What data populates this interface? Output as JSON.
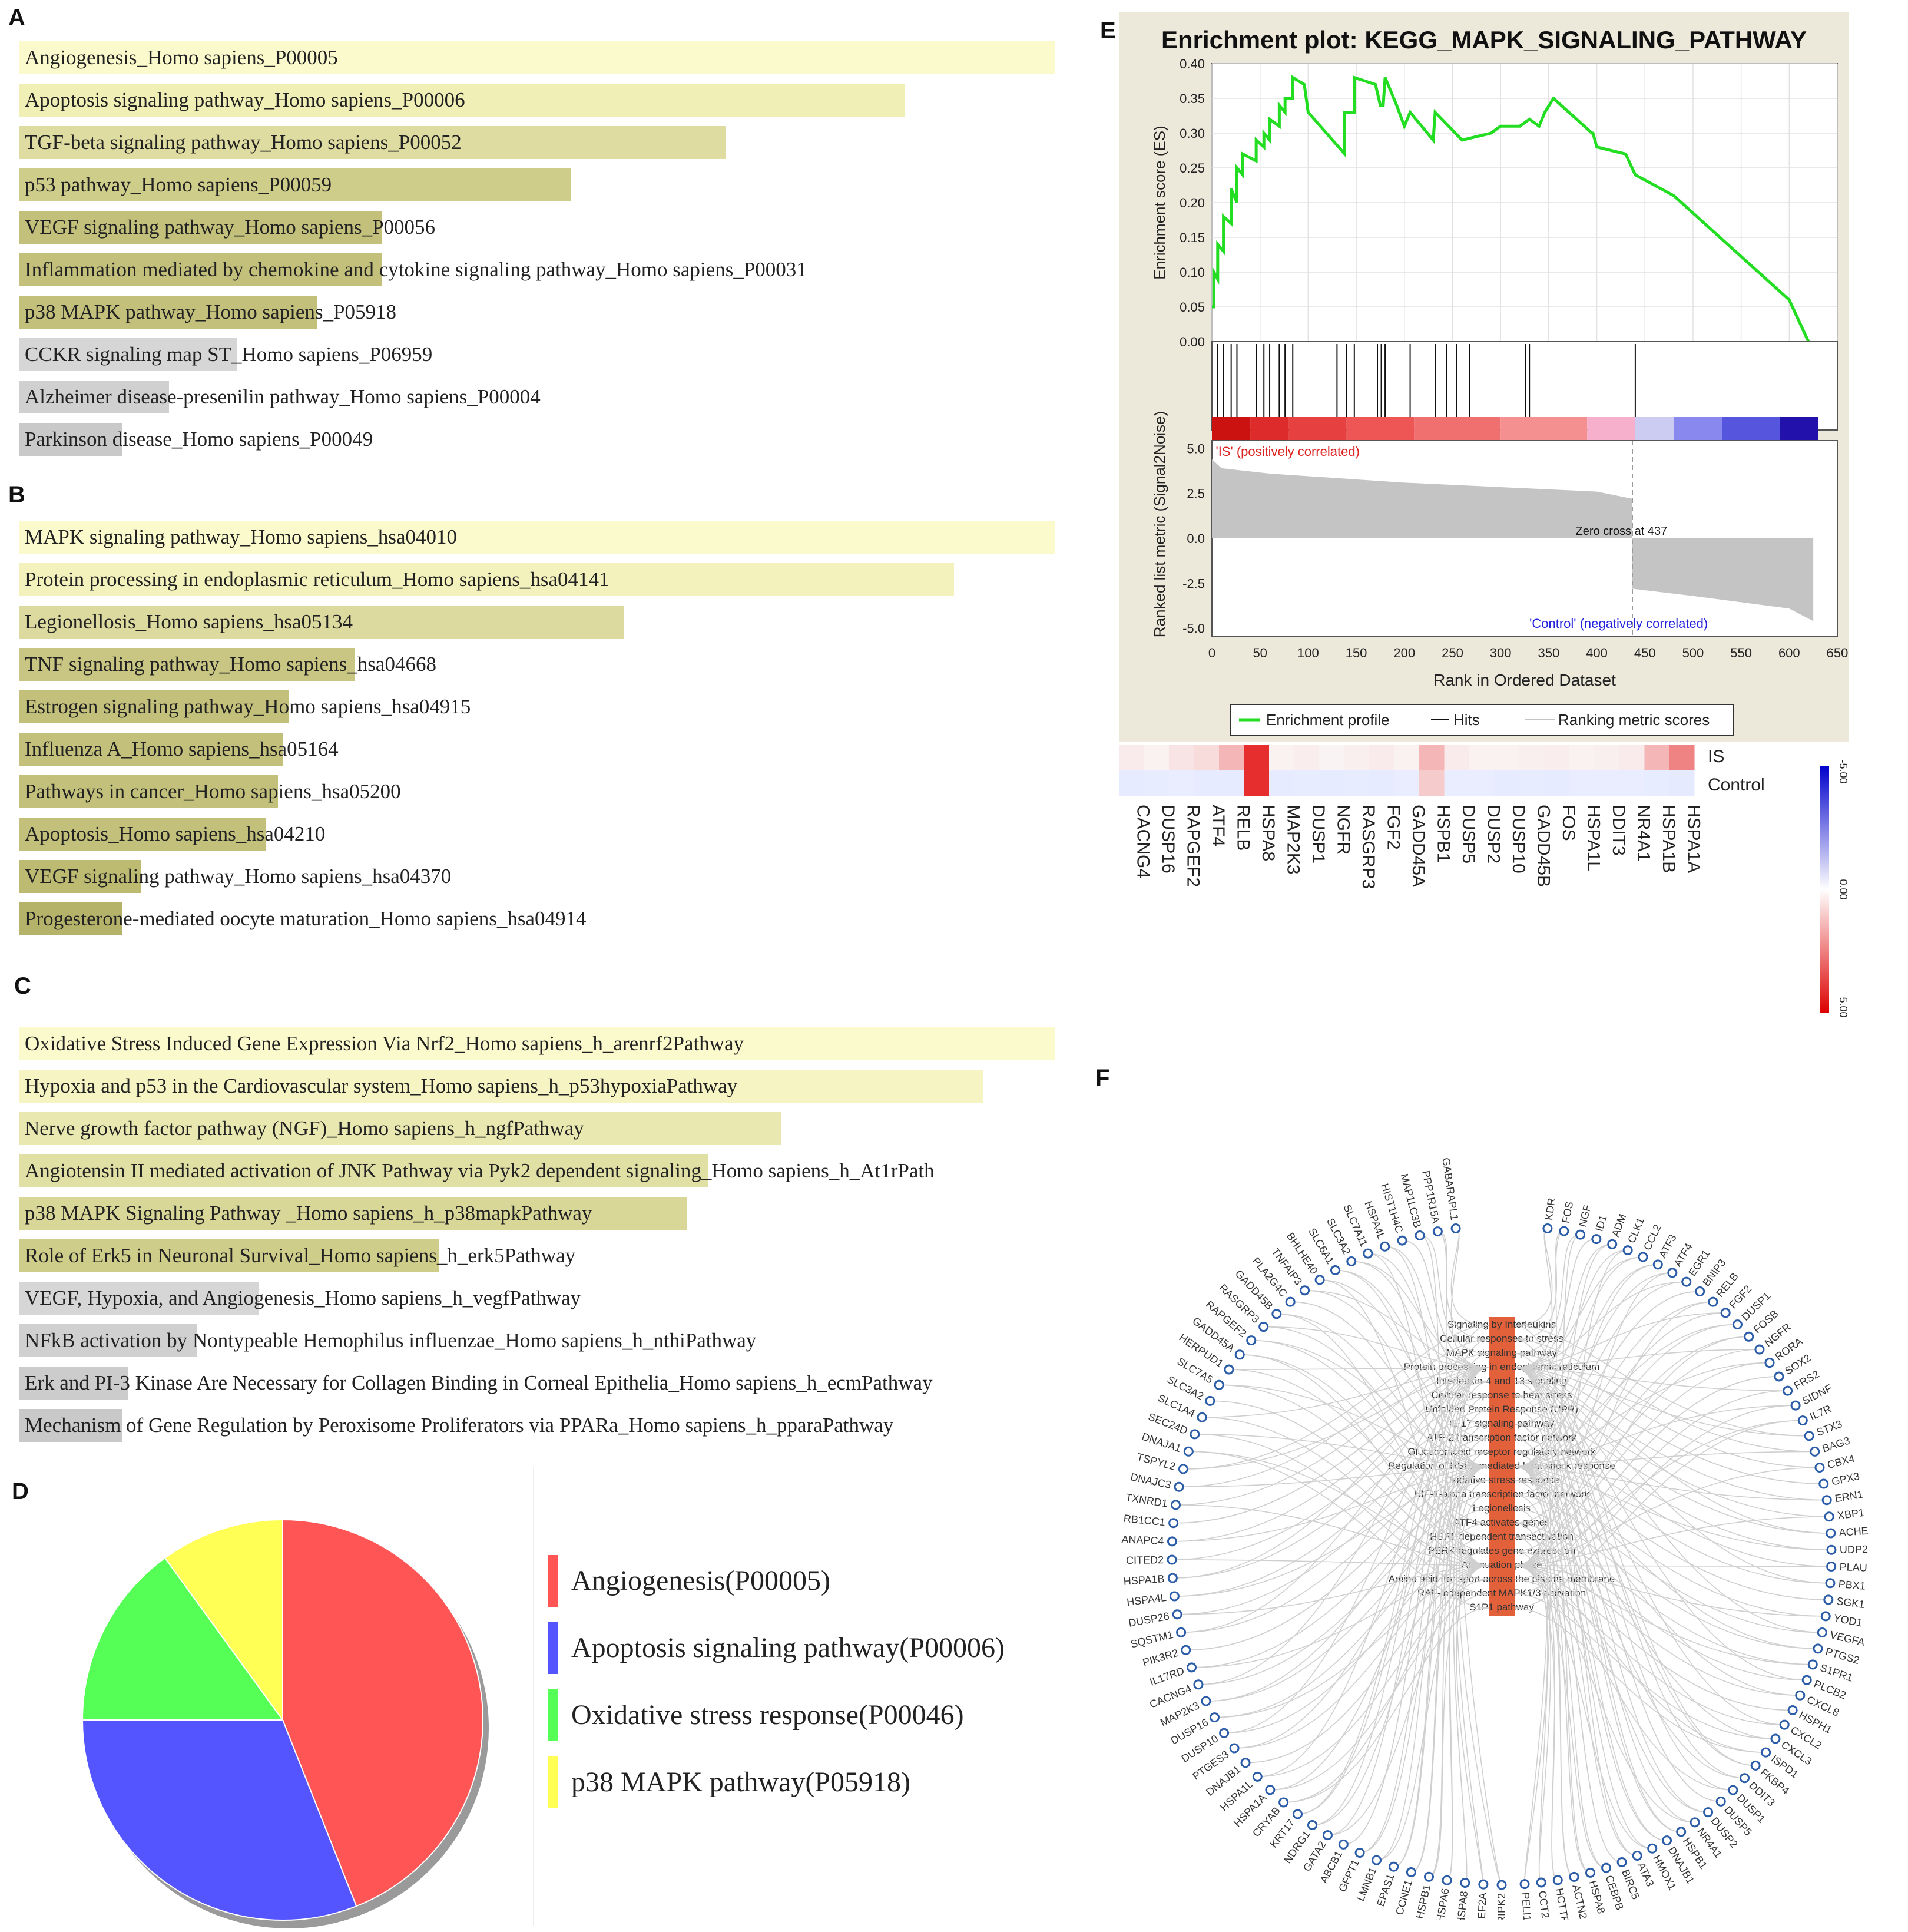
{
  "panels": {
    "A": "A",
    "B": "B",
    "C": "C",
    "D": "D",
    "E": "E",
    "F": "F"
  },
  "colors": {
    "tier1": "#fbfacc",
    "tier2": "#eceba6",
    "tier3": "#d9d793",
    "tier4": "#c4c27a",
    "tier5": "#ababab",
    "tier6": "#cdcdcd",
    "grey_bar": "#d2d2d2",
    "es_line": "#22dd22",
    "red": "#ff5555",
    "blue": "#5555ff",
    "green": "#55ff55",
    "yellow": "#ffff55"
  },
  "panelA": [
    {
      "label": "Angiogenesis_Homo sapiens_P00005",
      "value": 1.0,
      "color": "#fbfacc"
    },
    {
      "label": "Apoptosis signaling pathway_Homo sapiens_P00006",
      "value": 0.855,
      "color": "#f0efb6"
    },
    {
      "label": "TGF-beta signaling pathway_Homo sapiens_P00052",
      "value": 0.682,
      "color": "#dedca0"
    },
    {
      "label": "p53 pathway_Homo sapiens_P00059",
      "value": 0.533,
      "color": "#cfcd8a"
    },
    {
      "label": "VEGF signaling pathway_Homo sapiens_P00056",
      "value": 0.35,
      "color": "#c2c07a"
    },
    {
      "label": "Inflammation mediated by chemokine and cytokine signaling pathway_Homo sapiens_P00031",
      "value": 0.35,
      "color": "#c2c07a"
    },
    {
      "label": "p38 MAPK pathway_Homo sapiens_P05918",
      "value": 0.288,
      "color": "#c2c07a"
    },
    {
      "label": "CCKR signaling map ST_Homo sapiens_P06959",
      "value": 0.21,
      "color": "#d6d6d6"
    },
    {
      "label": "Alzheimer disease-presenilin pathway_Homo sapiens_P00004",
      "value": 0.145,
      "color": "#d0d0d0"
    },
    {
      "label": "Parkinson disease_Homo sapiens_P00049",
      "value": 0.1,
      "color": "#c9c9c9"
    }
  ],
  "panelB": [
    {
      "label": "MAPK signaling pathway_Homo sapiens_hsa04010",
      "value": 1.0,
      "color": "#fbfacc"
    },
    {
      "label": "Protein processing in endoplasmic reticulum_Homo sapiens_hsa04141",
      "value": 0.902,
      "color": "#f3f2bc"
    },
    {
      "label": "Legionellosis_Homo sapiens_hsa05134",
      "value": 0.584,
      "color": "#dcda9e"
    },
    {
      "label": "TNF signaling pathway_Homo sapiens_hsa04668",
      "value": 0.324,
      "color": "#c8c682"
    },
    {
      "label": "Estrogen signaling pathway_Homo sapiens_hsa04915",
      "value": 0.26,
      "color": "#c2c07a"
    },
    {
      "label": "Influenza A_Homo sapiens_hsa05164",
      "value": 0.255,
      "color": "#c2c07a"
    },
    {
      "label": "Pathways in cancer_Homo sapiens_hsa05200",
      "value": 0.25,
      "color": "#c2c07a"
    },
    {
      "label": "Apoptosis_Homo sapiens_hsa04210",
      "value": 0.238,
      "color": "#c2c07a"
    },
    {
      "label": "VEGF signaling pathway_Homo sapiens_hsa04370",
      "value": 0.118,
      "color": "#bdbb72"
    },
    {
      "label": "Progesterone-mediated oocyte maturation_Homo sapiens_hsa04914",
      "value": 0.1,
      "color": "#b5b36a"
    }
  ],
  "panelC": [
    {
      "label": "Oxidative Stress Induced Gene Expression Via Nrf2_Homo sapiens_h_arenrf2Pathway",
      "value": 1.0,
      "color": "#fbfacc"
    },
    {
      "label": "Hypoxia and p53 in the Cardiovascular system_Homo sapiens_h_p53hypoxiaPathway",
      "value": 0.93,
      "color": "#f5f4c2"
    },
    {
      "label": "Nerve growth factor pathway (NGF)_Homo sapiens_h_ngfPathway",
      "value": 0.735,
      "color": "#e9e8b0"
    },
    {
      "label": "Angiotensin II mediated activation of JNK Pathway via Pyk2 dependent signaling_Homo sapiens_h_At1rPath",
      "value": 0.665,
      "color": "#e0dfa4"
    },
    {
      "label": "p38 MAPK Signaling Pathway _Homo sapiens_h_p38mapkPathway",
      "value": 0.645,
      "color": "#d9d798"
    },
    {
      "label": "Role of Erk5 in Neuronal Survival_Homo sapiens_h_erk5Pathway",
      "value": 0.405,
      "color": "#cfcd8a"
    },
    {
      "label": "VEGF, Hypoxia, and Angiogenesis_Homo sapiens_h_vegfPathway",
      "value": 0.232,
      "color": "#d6d6d6"
    },
    {
      "label": "NFkB activation by Nontypeable Hemophilus influenzae_Homo sapiens_h_nthiPathway",
      "value": 0.172,
      "color": "#d0d0d0"
    },
    {
      "label": "Erk and PI-3 Kinase Are Necessary for Collagen Binding in Corneal Epithelia_Homo sapiens_h_ecmPathway",
      "value": 0.105,
      "color": "#cccccc"
    },
    {
      "label": "Mechanism of Gene Regulation by Peroxisome Proliferators via PPARa_Homo sapiens_h_pparaPathway",
      "value": 0.1,
      "color": "#c9c9c9"
    }
  ],
  "chart_data": [
    {
      "type": "bar",
      "panel": "A",
      "categories": [
        "Angiogenesis_Homo sapiens_P00005",
        "Apoptosis signaling pathway_Homo sapiens_P00006",
        "TGF-beta signaling pathway_Homo sapiens_P00052",
        "p53 pathway_Homo sapiens_P00059",
        "VEGF signaling pathway_Homo sapiens_P00056",
        "Inflammation mediated by chemokine and cytokine signaling pathway_Homo sapiens_P00031",
        "p38 MAPK pathway_Homo sapiens_P05918",
        "CCKR signaling map ST_Homo sapiens_P06959",
        "Alzheimer disease-presenilin pathway_Homo sapiens_P00004",
        "Parkinson disease_Homo sapiens_P00049"
      ],
      "values": [
        1.0,
        0.855,
        0.682,
        0.533,
        0.35,
        0.35,
        0.288,
        0.21,
        0.145,
        0.1
      ]
    },
    {
      "type": "bar",
      "panel": "B",
      "categories": [
        "MAPK signaling pathway_Homo sapiens_hsa04010",
        "Protein processing in endoplasmic reticulum_Homo sapiens_hsa04141",
        "Legionellosis_Homo sapiens_hsa05134",
        "TNF signaling pathway_Homo sapiens_hsa04668",
        "Estrogen signaling pathway_Homo sapiens_hsa04915",
        "Influenza A_Homo sapiens_hsa05164",
        "Pathways in cancer_Homo sapiens_hsa05200",
        "Apoptosis_Homo sapiens_hsa04210",
        "VEGF signaling pathway_Homo sapiens_hsa04370",
        "Progesterone-mediated oocyte maturation_Homo sapiens_hsa04914"
      ],
      "values": [
        1.0,
        0.902,
        0.584,
        0.324,
        0.26,
        0.255,
        0.25,
        0.238,
        0.118,
        0.1
      ]
    },
    {
      "type": "bar",
      "panel": "C",
      "categories": [
        "arenrf2Pathway",
        "p53hypoxiaPathway",
        "ngfPathway",
        "At1rPath",
        "p38mapkPathway",
        "erk5Pathway",
        "vegfPathway",
        "nthiPathway",
        "ecmPathway",
        "pparaPathway"
      ],
      "values": [
        1.0,
        0.93,
        0.735,
        0.665,
        0.645,
        0.405,
        0.232,
        0.172,
        0.105,
        0.1
      ]
    },
    {
      "type": "pie",
      "panel": "D",
      "labels": [
        "Angiogenesis(P00005)",
        "Apoptosis signaling pathway(P00006)",
        "Oxidative stress response(P00046)",
        "p38 MAPK pathway(P05918)"
      ],
      "values": [
        44,
        31,
        15,
        10
      ],
      "colors": [
        "#ff5555",
        "#5555ff",
        "#55ff55",
        "#ffff55"
      ]
    },
    {
      "type": "line",
      "panel": "E",
      "title": "Enrichment plot: KEGG_MAPK_SIGNALING_PATHWAY",
      "ylabel": "Enrichment score (ES)",
      "xlabel": "Rank in Ordered Dataset",
      "ylim": [
        0,
        0.4
      ],
      "xlim": [
        0,
        650
      ],
      "yticks": [
        "0.00",
        "0.05",
        "0.10",
        "0.15",
        "0.20",
        "0.25",
        "0.30",
        "0.35",
        "0.40"
      ],
      "xticks": [
        "0",
        "50",
        "100",
        "150",
        "200",
        "250",
        "300",
        "350",
        "400",
        "450",
        "500",
        "550",
        "600",
        "650"
      ],
      "es_x": [
        0,
        2,
        2,
        6,
        6,
        12,
        12,
        20,
        20,
        26,
        26,
        32,
        32,
        46,
        46,
        54,
        54,
        60,
        60,
        70,
        70,
        76,
        76,
        84,
        84,
        96,
        100,
        138,
        138,
        148,
        148,
        170,
        175,
        178,
        180,
        180,
        192,
        200,
        206,
        230,
        232,
        260,
        290,
        300,
        320,
        330,
        340,
        346,
        355,
        395,
        396,
        400,
        430,
        440,
        480,
        600,
        620
      ],
      "es_y": [
        0.05,
        0.05,
        0.1,
        0.09,
        0.14,
        0.13,
        0.18,
        0.17,
        0.22,
        0.2,
        0.25,
        0.24,
        0.27,
        0.26,
        0.29,
        0.28,
        0.3,
        0.29,
        0.32,
        0.31,
        0.34,
        0.33,
        0.35,
        0.35,
        0.38,
        0.37,
        0.33,
        0.27,
        0.33,
        0.33,
        0.38,
        0.37,
        0.34,
        0.34,
        0.38,
        0.38,
        0.34,
        0.31,
        0.33,
        0.29,
        0.33,
        0.29,
        0.3,
        0.31,
        0.31,
        0.32,
        0.31,
        0.33,
        0.35,
        0.3,
        0.3,
        0.28,
        0.27,
        0.24,
        0.21,
        0.06,
        0.0
      ],
      "hits": [
        6,
        12,
        20,
        26,
        46,
        54,
        60,
        70,
        76,
        84,
        130,
        140,
        148,
        172,
        176,
        180,
        206,
        232,
        244,
        254,
        268,
        326,
        330,
        440
      ],
      "metric_ylabel": "Ranked list metric (Signal2Noise)",
      "metric_yticks": [
        "5.0",
        "2.5",
        "0.0",
        "-2.5",
        "-5.0"
      ],
      "pos_label": "'IS' (positively correlated)",
      "neg_label": "'Control' (negatively correlated)",
      "zero_cross": "Zero cross at 437",
      "legend": [
        "Enrichment profile",
        "Hits",
        "Ranking metric scores"
      ]
    },
    {
      "type": "heatmap",
      "panel": "E",
      "rows": [
        "IS",
        "Control"
      ],
      "columns": [
        "CACNG4",
        "DUSP16",
        "RAPGEF2",
        "ATF4",
        "RELB",
        "HSPA8",
        "MAP2K3",
        "DUSP1",
        "NGFR",
        "RASGRP3",
        "FGF2",
        "GADD45A",
        "HSPB1",
        "DUSP5",
        "DUSP2",
        "DUSP10",
        "GADD45B",
        "FOS",
        "HSPA1L",
        "DDIT3",
        "NR4A1",
        "HSPA1B",
        "HSPA1A"
      ],
      "scale_labels": [
        "-5.00",
        "0.00",
        "5.00"
      ]
    }
  ],
  "panelD": {
    "legend": [
      {
        "label": "Angiogenesis(P00005)",
        "color": "#ff5555"
      },
      {
        "label": "Apoptosis signaling pathway(P00006)",
        "color": "#5555ff"
      },
      {
        "label": "Oxidative stress response(P00046)",
        "color": "#55ff55"
      },
      {
        "label": "p38 MAPK pathway(P05918)",
        "color": "#ffff55"
      }
    ]
  },
  "panelE": {
    "title": "Enrichment plot: KEGG_MAPK_SIGNALING_PATHWAY",
    "ylabel": "Enrichment score (ES)",
    "xlabel": "Rank in Ordered Dataset",
    "metric_ylabel": "Ranked list metric (Signal2Noise)",
    "pos_label": "'IS' (positively correlated)",
    "neg_label": "'Control' (negatively correlated)",
    "zero_cross": "Zero cross at 437",
    "legend": {
      "profile": "Enrichment profile",
      "hits": "Hits",
      "metric": "Ranking metric scores"
    },
    "heat_rows": [
      "IS",
      "Control"
    ],
    "scale_labels": [
      "-5.00",
      "0.00",
      "5.00"
    ],
    "heat_values_is": [
      0.05,
      0.02,
      0.08,
      0.12,
      0.3,
      0.95,
      0.02,
      0.04,
      0.01,
      0.03,
      0.05,
      0.02,
      0.3,
      0.05,
      0.02,
      0.02,
      0.03,
      0.04,
      0.02,
      0.03,
      0.05,
      0.3,
      0.55
    ],
    "heat_values_ctrl": [
      -0.1,
      -0.08,
      -0.05,
      -0.1,
      -0.1,
      0.95,
      -0.1,
      -0.08,
      -0.1,
      -0.08,
      -0.1,
      -0.05,
      0.2,
      -0.05,
      -0.05,
      -0.1,
      -0.08,
      -0.1,
      -0.05,
      -0.05,
      -0.05,
      -0.08,
      -0.12
    ]
  },
  "panelF": {
    "center_terms": [
      "Signaling by Interleukins",
      "Cellular responses to stress",
      "MAPK signaling pathway",
      "Protein processing in endoplasmic reticulum",
      "Interleukin-4 and 13 signaling",
      "Cellular response to heat stress",
      "Unfolded Protein Response (UPR)",
      "IL-17 signaling pathway",
      "ATF-2 transcription factor network",
      "Glucocorticoid receptor regulatory network",
      "Regulation of HSF1-mediated heat shock response",
      "Oxidative stress response",
      "HIF-1-alpha transcription factor network",
      "Legionellosis",
      "ATF4 activates genes",
      "HSF1-dependent transactivation",
      "PERK regulates gene expression",
      "Attenuation phase",
      "Amino acid transport across the plasma membrane",
      "RAF-independent MAPK1/3 activation",
      "S1P1 pathway"
    ],
    "left_genes": [
      "GABARAPL1",
      "PPP1R15A",
      "MAP1LC3B",
      "HIST1H4C",
      "HSPA4L",
      "SLC7A11",
      "SLC3A2",
      "SLC6A1",
      "BHLHE40",
      "TNFAIP3",
      "PLA2G4C",
      "GADD45B",
      "RASGRP3",
      "RAPGEF2",
      "GADD45A",
      "HERPUD1",
      "SLC7A5",
      "SLC3A2",
      "SLC1A4",
      "SEC24D",
      "DNAJA1",
      "TSPYL2",
      "DNAJC3",
      "TXNRD1",
      "RB1CC1",
      "ANAPC4",
      "CITED2",
      "HSPA1B",
      "HSPA4L",
      "DUSP26",
      "SQSTM1",
      "PIK3R2",
      "IL17RD",
      "CACNG4",
      "MAP2K3",
      "DUSP16",
      "DUSP10",
      "PTGES3",
      "DNAJB1",
      "HSPA1L",
      "HSPA1A",
      "CRYAB",
      "KRT17",
      "NDRG1",
      "GATA2",
      "ABCB1",
      "GFPT1",
      "LMNB1",
      "EPAS1",
      "CCNE1",
      "HSPB1",
      "HSPA6",
      "HSPA8",
      "MEF2A",
      "RIPK2"
    ],
    "right_genes": [
      "KDR",
      "FOS",
      "NGF",
      "ID1",
      "ADM",
      "CLK1",
      "CCL2",
      "ATF3",
      "ATF4",
      "EGR1",
      "BNIP3",
      "RELB",
      "FGF2",
      "DUSP1",
      "FOSB",
      "NGFR",
      "RORA",
      "SOX2",
      "FRS2",
      "SIDNF",
      "IL7R",
      "STX3",
      "BAG3",
      "CBX4",
      "GPX3",
      "ERN1",
      "XBP1",
      "ACHE",
      "UDP2",
      "PLAU",
      "PBX1",
      "SGK1",
      "YOD1",
      "VEGFA",
      "PTGS2",
      "S1PR1",
      "PLCB2",
      "CXCL8",
      "HSPH1",
      "CXCL2",
      "CXCL3",
      "ISPD1",
      "FKBP4",
      "DDIT3",
      "DUSP1",
      "DUSP5",
      "DUSP2",
      "NR4A1",
      "HSPB1",
      "DNAJB1",
      "HMOX1",
      "ATA3",
      "BIRC5",
      "CEBPB",
      "HSPA8",
      "ACTN2",
      "HCTTR",
      "CCT2",
      "PELI1"
    ]
  }
}
